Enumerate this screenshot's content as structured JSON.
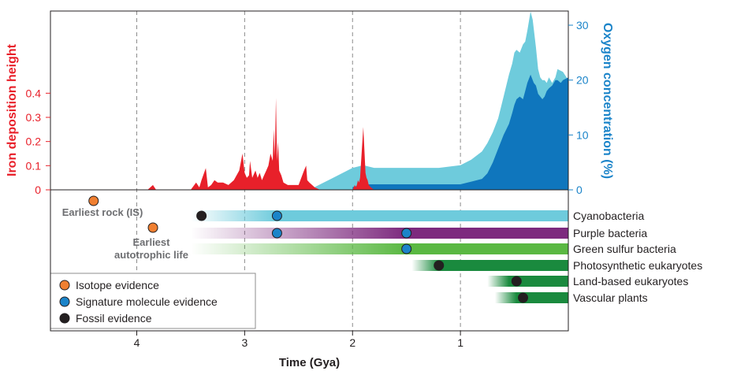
{
  "chart_data": {
    "type": "area",
    "xlabel": "Time (Gya)",
    "ylabel_left": "Iron deposition height",
    "ylabel_right": "Oxygen concentration (%)",
    "x_ticks": [
      4,
      3,
      2,
      1
    ],
    "xlim": [
      4.8,
      0
    ],
    "ylim_left": [
      0,
      0.45
    ],
    "y_ticks_left": [
      0,
      0.1,
      0.2,
      0.3,
      0.4
    ],
    "y_tick_labels_left": [
      "0",
      "0.1",
      "0.2",
      "0.3",
      "0.4"
    ],
    "ylim_right": [
      0,
      33
    ],
    "y_ticks_right": [
      0,
      10,
      20,
      30
    ],
    "gridlines_x": [
      4,
      3,
      2,
      1
    ],
    "iron_deposition": {
      "color": "#e8202a",
      "x": [
        3.9,
        3.85,
        3.82,
        3.5,
        3.45,
        3.42,
        3.4,
        3.36,
        3.34,
        3.31,
        3.28,
        3.25,
        3.2,
        3.15,
        3.1,
        3.05,
        3.02,
        3.0,
        2.98,
        2.96,
        2.95,
        2.93,
        2.9,
        2.88,
        2.86,
        2.84,
        2.82,
        2.8,
        2.78,
        2.76,
        2.74,
        2.73,
        2.72,
        2.71,
        2.7,
        2.69,
        2.68,
        2.66,
        2.64,
        2.6,
        2.5,
        2.45,
        2.43,
        2.42,
        2.4,
        2.35,
        2.3,
        2.0,
        1.98,
        1.97,
        1.96,
        1.95,
        1.94,
        1.93,
        1.9,
        1.88,
        1.87,
        1.86,
        1.85,
        1.83,
        1.8,
        1.75
      ],
      "y": [
        0.0,
        0.02,
        0.0,
        0.0,
        0.03,
        0.01,
        0.04,
        0.09,
        0.01,
        0.02,
        0.04,
        0.03,
        0.03,
        0.02,
        0.04,
        0.08,
        0.15,
        0.07,
        0.05,
        0.06,
        0.12,
        0.05,
        0.08,
        0.05,
        0.07,
        0.04,
        0.06,
        0.08,
        0.1,
        0.15,
        0.12,
        0.25,
        0.14,
        0.38,
        0.12,
        0.2,
        0.08,
        0.06,
        0.03,
        0.02,
        0.02,
        0.08,
        0.1,
        0.04,
        0.03,
        0.01,
        0.0,
        0.0,
        0.02,
        0.01,
        0.02,
        0.04,
        0.03,
        0.05,
        0.26,
        0.07,
        0.05,
        0.04,
        0.02,
        0.01,
        0.0,
        0.0
      ]
    },
    "oxygen_upper": {
      "color": "#6ecbdc",
      "x": [
        2.4,
        2.3,
        2.2,
        2.1,
        2.0,
        1.9,
        1.8,
        1.5,
        1.2,
        1.0,
        0.9,
        0.8,
        0.75,
        0.7,
        0.65,
        0.6,
        0.55,
        0.52,
        0.5,
        0.48,
        0.45,
        0.42,
        0.4,
        0.38,
        0.35,
        0.33,
        0.3,
        0.28,
        0.26,
        0.24,
        0.22,
        0.2,
        0.18,
        0.15,
        0.12,
        0.1,
        0.05,
        0.0
      ],
      "y": [
        0.0,
        1.0,
        2.0,
        3.0,
        4.0,
        4.5,
        4.0,
        4.0,
        4.0,
        4.5,
        5.5,
        7.0,
        8.5,
        10.5,
        13.0,
        17.0,
        21.0,
        23.0,
        25.0,
        25.5,
        25.0,
        26.5,
        27.0,
        29.0,
        32.5,
        31.0,
        26.0,
        22.0,
        20.5,
        20.0,
        20.0,
        19.5,
        20.5,
        19.5,
        20.5,
        22.0,
        21.5,
        20.0
      ]
    },
    "oxygen_lower": {
      "color": "#0f76bd",
      "x": [
        2.0,
        1.9,
        1.2,
        1.0,
        0.9,
        0.8,
        0.75,
        0.7,
        0.65,
        0.6,
        0.55,
        0.52,
        0.5,
        0.48,
        0.45,
        0.42,
        0.4,
        0.38,
        0.35,
        0.32,
        0.3,
        0.28,
        0.26,
        0.24,
        0.22,
        0.2,
        0.18,
        0.15,
        0.12,
        0.1,
        0.07,
        0.05,
        0.0
      ],
      "y": [
        0.5,
        1.0,
        1.0,
        1.0,
        1.5,
        2.0,
        3.0,
        5.0,
        7.5,
        10.0,
        12.0,
        14.0,
        15.5,
        16.5,
        17.0,
        16.5,
        18.0,
        19.5,
        21.0,
        19.5,
        19.0,
        17.5,
        17.0,
        16.5,
        17.0,
        18.0,
        18.5,
        19.0,
        20.0,
        20.0,
        19.5,
        20.0,
        20.5
      ]
    },
    "events": [
      {
        "label": "Earliest rock (IS)",
        "x": 4.4,
        "type": "isotope"
      },
      {
        "label": "Earliest autotrophic life",
        "x": 3.85,
        "type": "isotope"
      }
    ],
    "lineages": [
      {
        "name": "Cyanobacteria",
        "color": "#6ecbdc",
        "fade_start": 3.5,
        "solid_start": 2.7,
        "end": 0,
        "markers": [
          {
            "x": 3.4,
            "type": "fossil"
          },
          {
            "x": 2.7,
            "type": "molecule"
          }
        ]
      },
      {
        "name": "Purple bacteria",
        "color": "#7d2a7e",
        "fade_start": 3.5,
        "solid_start": 1.5,
        "end": 0,
        "markers": [
          {
            "x": 2.7,
            "type": "molecule"
          },
          {
            "x": 1.5,
            "type": "molecule"
          }
        ]
      },
      {
        "name": "Green sulfur bacteria",
        "color": "#5ab842",
        "fade_start": 3.5,
        "solid_start": 1.5,
        "end": 0,
        "markers": [
          {
            "x": 1.5,
            "type": "molecule"
          }
        ]
      },
      {
        "name": "Photosynthetic eukaryotes",
        "color": "#1a8a3e",
        "fade_start": 1.45,
        "solid_start": 1.2,
        "end": 0,
        "markers": [
          {
            "x": 1.2,
            "type": "fossil"
          }
        ]
      },
      {
        "name": "Land-based eukaryotes",
        "color": "#1a8a3e",
        "fade_start": 0.75,
        "solid_start": 0.55,
        "end": 0,
        "markers": [
          {
            "x": 0.48,
            "type": "fossil"
          }
        ]
      },
      {
        "name": "Vascular plants",
        "color": "#1a8a3e",
        "fade_start": 0.68,
        "solid_start": 0.48,
        "end": 0,
        "markers": [
          {
            "x": 0.42,
            "type": "fossil"
          }
        ]
      }
    ],
    "marker_colors": {
      "isotope": "#f07f30",
      "molecule": "#1b84c9",
      "fossil": "#231f20"
    },
    "legend": [
      {
        "label": "Isotope evidence",
        "type": "isotope"
      },
      {
        "label": "Signature molecule evidence",
        "type": "molecule"
      },
      {
        "label": "Fossil evidence",
        "type": "fossil"
      }
    ],
    "legend_placement": "bottom-left"
  }
}
